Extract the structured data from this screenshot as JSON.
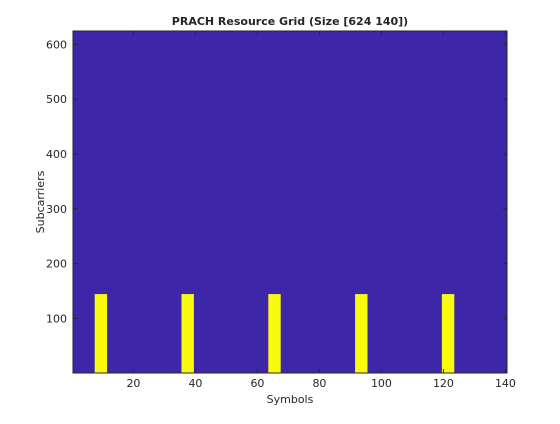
{
  "chart_data": {
    "type": "heatmap",
    "title": "PRACH Resource Grid (Size [624 140])",
    "xlabel": "Symbols",
    "ylabel": "Subcarriers",
    "xlim": [
      0.5,
      140.5
    ],
    "ylim": [
      0.5,
      624.5
    ],
    "x_ticks": [
      20,
      40,
      60,
      80,
      100,
      120,
      140
    ],
    "y_ticks": [
      100,
      200,
      300,
      400,
      500,
      600
    ],
    "background_value": 0,
    "colors": {
      "background": "#3e26a8",
      "active": "#f9fb0e"
    },
    "active_blocks": [
      {
        "symbols": [
          8,
          11
        ],
        "subcarriers": [
          1,
          144
        ],
        "value": 1
      },
      {
        "symbols": [
          36,
          39
        ],
        "subcarriers": [
          1,
          144
        ],
        "value": 1
      },
      {
        "symbols": [
          64,
          67
        ],
        "subcarriers": [
          1,
          144
        ],
        "value": 1
      },
      {
        "symbols": [
          92,
          95
        ],
        "subcarriers": [
          1,
          144
        ],
        "value": 1
      },
      {
        "symbols": [
          120,
          123
        ],
        "subcarriers": [
          1,
          144
        ],
        "value": 1
      }
    ]
  }
}
